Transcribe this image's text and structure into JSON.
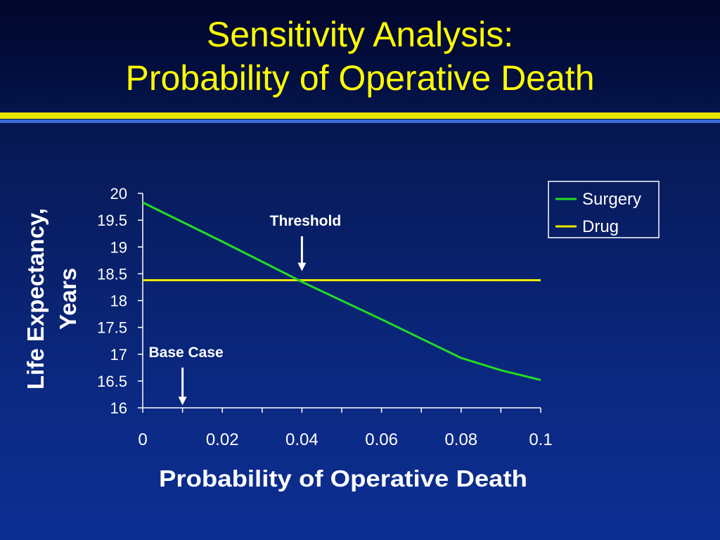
{
  "slide": {
    "title_line1": "Sensitivity Analysis:",
    "title_line2": "Probability of Operative Death"
  },
  "colors": {
    "background": "#0b2880",
    "title": "#ffff00",
    "text": "#ffffff",
    "surgery": "#22dd22",
    "drug": "#e8e800",
    "rule_yellow": "#e6e600",
    "rule_blue": "#3a6ad8"
  },
  "chart_data": {
    "type": "line",
    "title": "",
    "xlabel": "Probability of Operative Death",
    "ylabel_line1": "Life Expectancy,",
    "ylabel_line2": "Years",
    "xlim": [
      0,
      0.1
    ],
    "ylim": [
      16,
      20
    ],
    "x_ticks": [
      0,
      0.02,
      0.04,
      0.06,
      0.08,
      0.1
    ],
    "x_tick_labels": [
      "0",
      "0.02",
      "0.04",
      "0.06",
      "0.08",
      "0.1"
    ],
    "y_ticks": [
      16,
      16.5,
      17,
      17.5,
      18,
      18.5,
      19,
      19.5,
      20
    ],
    "y_tick_labels": [
      "16",
      "16.5",
      "17",
      "17.5",
      "18",
      "18.5",
      "19",
      "19.5",
      "20"
    ],
    "grid": false,
    "legend_position": "top-right",
    "series": [
      {
        "name": "Surgery",
        "x": [
          0,
          0.02,
          0.04,
          0.06,
          0.08,
          0.09,
          0.1
        ],
        "y": [
          19.83,
          19.1,
          18.35,
          17.65,
          16.93,
          16.7,
          16.52
        ]
      },
      {
        "name": "Drug",
        "x": [
          0,
          0.1
        ],
        "y": [
          18.38,
          18.38
        ]
      }
    ],
    "annotations": [
      {
        "label": "Threshold",
        "x": 0.04,
        "arrow_from_y": 19.2,
        "arrow_to_y": 18.55
      },
      {
        "label": "Base Case",
        "x": 0.01,
        "arrow_from_y": 16.75,
        "arrow_to_y": 16.05
      }
    ]
  }
}
